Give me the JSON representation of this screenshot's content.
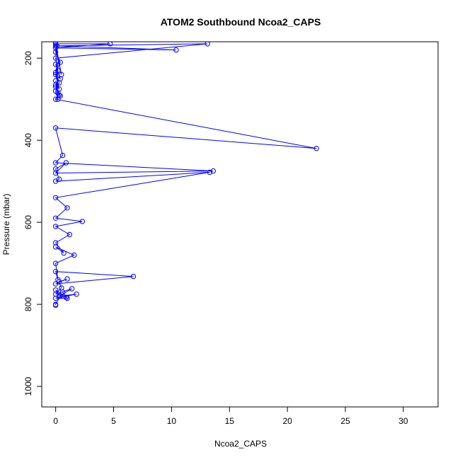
{
  "chart_data": {
    "type": "line",
    "title": "ATOM2 Southbound Ncoa2_CAPS",
    "xlabel": "Ncoa2_CAPS",
    "ylabel": "Pressure (mbar)",
    "xlim": [
      -1.2,
      33
    ],
    "ylim": [
      1050,
      160
    ],
    "y_reversed": true,
    "grid": false,
    "x_ticks": [
      0,
      5,
      10,
      15,
      20,
      25,
      30
    ],
    "y_ticks": [
      200,
      400,
      600,
      800,
      1000
    ],
    "series": [
      {
        "color": "#0000ff",
        "marker": "circle-open",
        "x": [
          0.0,
          0.1,
          0.0,
          0.4,
          0.0,
          0.3,
          0.0,
          0.2,
          0.0,
          0.5,
          0.0,
          4.7,
          0.0,
          10.4,
          0.0,
          13.1,
          0.0,
          0.2,
          0.0,
          0.4,
          0.0,
          0.3,
          0.0,
          0.3,
          0.0,
          0.2,
          0.0,
          0.4,
          0.0,
          22.5,
          0.0,
          0.6,
          0.0,
          13.6,
          0.0,
          0.9,
          0.0,
          0.3,
          0.0,
          13.3,
          0.0,
          1.0,
          0.0,
          2.3,
          0.0,
          1.2,
          0.0,
          0.7,
          0.0,
          1.6,
          0.0,
          0.2,
          0.0,
          6.7,
          0.0,
          1.0,
          0.3,
          0.5,
          0.0,
          1.4,
          0.3,
          1.8,
          0.0,
          1.0,
          0.6,
          0.9,
          0.0,
          0.4,
          0.0,
          0.0
        ],
        "y": [
          160,
          170,
          185,
          210,
          235,
          260,
          280,
          300,
          175,
          240,
          165,
          165,
          175,
          180,
          170,
          165,
          200,
          230,
          215,
          250,
          240,
          275,
          265,
          290,
          255,
          285,
          270,
          292,
          300,
          420,
          370,
          437,
          455,
          475,
          480,
          455,
          470,
          495,
          500,
          478,
          540,
          565,
          590,
          598,
          610,
          630,
          650,
          675,
          660,
          680,
          700,
          740,
          720,
          732,
          750,
          738,
          745,
          760,
          775,
          762,
          780,
          775,
          785,
          785,
          770,
          783,
          765,
          780,
          800,
          802
        ]
      }
    ]
  }
}
